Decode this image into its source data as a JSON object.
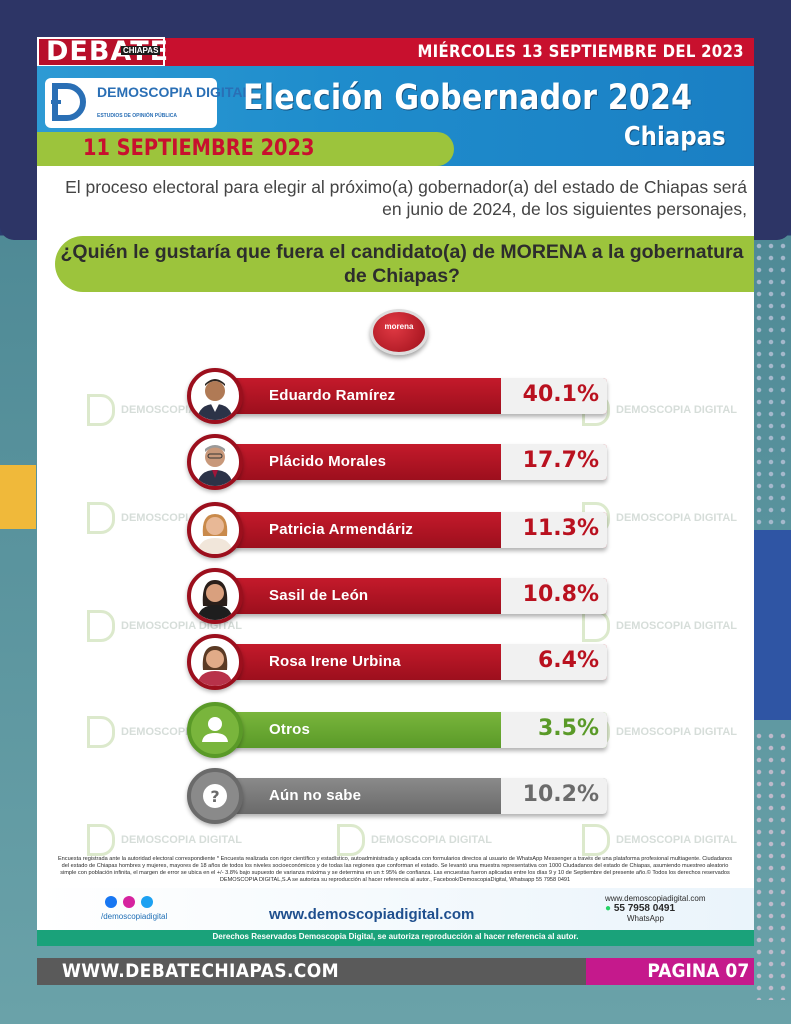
{
  "header": {
    "logo": "DEBATE",
    "logo_sub": "CHIAPAS",
    "date": "MIÉRCOLES 13 SEPTIEMBRE DEL 2023"
  },
  "poll": {
    "brand": "DEMOSCOPIA DIGITAL",
    "brand_sub": "ESTUDIOS DE OPINIÓN PÚBLICA",
    "title": "Elección Gobernador 2024",
    "subtitle": "Chiapas",
    "date": "11 SEPTIEMBRE 2023",
    "intro": "El proceso electoral para elegir al próximo(a) gobernador(a) del estado de Chiapas será en junio de 2024, de los siguientes personajes,",
    "question": "¿Quién le gustaría que fuera el candidato(a) de MORENA a la gobernatura de Chiapas?",
    "party": "morena",
    "watermark": "DEMOSCOPIA DIGITAL",
    "watermark_sub": "ESTUDIOS DE OPINIÓN PÚBLICA"
  },
  "chart_data": {
    "type": "bar",
    "categories": [
      "Eduardo Ramírez",
      "Plácido Morales",
      "Patricia Armendáriz",
      "Sasil de León",
      "Rosa Irene Urbina",
      "Otros",
      "Aún no sabe"
    ],
    "values": [
      40.1,
      17.7,
      11.3,
      10.8,
      6.4,
      3.5,
      10.2
    ],
    "labels": [
      "40.1%",
      "17.7%",
      "11.3%",
      "10.8%",
      "6.4%",
      "3.5%",
      "10.2%"
    ],
    "colors": [
      "#b3121f",
      "#b3121f",
      "#b3121f",
      "#b3121f",
      "#b3121f",
      "#5a9a28",
      "#6a6a6a"
    ],
    "title": "",
    "xlabel": "",
    "ylabel": ""
  },
  "footer": {
    "methodology": "Encuesta registrada ante la autoridad electoral correspondiente * Encuesta realizada con rigor científico y estadístico, autoadministrada y aplicada con formularios directos al usuario de WhatsApp Messenger a través de una plataforma profesional multiagente. Ciudadanos del estado de Chiapas hombres y mujeres, mayores de 18 años de todos los niveles socioeconómicos y de todas las regiones que conforman el estado. Se levantó una muestra representativa con 1000 Ciudadanos del estado de Chiapas, asumiendo muestreo aleatorio simple con población infinita, el margen de error se ubica en el +/- 3.8% bajo supuesto de varianza máxima y se determina en un ± 95% de confianza. Las encuestas fueron aplicadas entre los días 9 y 10 de Septiembre del presente año.© Todos los derechos reservados DEMOSCOPIA DIGITAL,S.A se autoriza su reproducción al hacer referencia al autor., Facebook/DemoscopiaDigital, Whatsapp 55 7958 0491",
    "social_handle": "/demoscopiadigital",
    "website": "www.demoscopiadigital.com",
    "contact_web": "www.demoscopiadigital.com",
    "phone": "55 7958 0491",
    "phone_label": "WhatsApp",
    "rights": "Derechos Reservados Demoscopia Digital, se autoriza reproducción al hacer referencia al autor."
  },
  "bottom": {
    "site": "WWW.DEBATECHIAPAS.COM",
    "page": "PAGINA 07"
  }
}
